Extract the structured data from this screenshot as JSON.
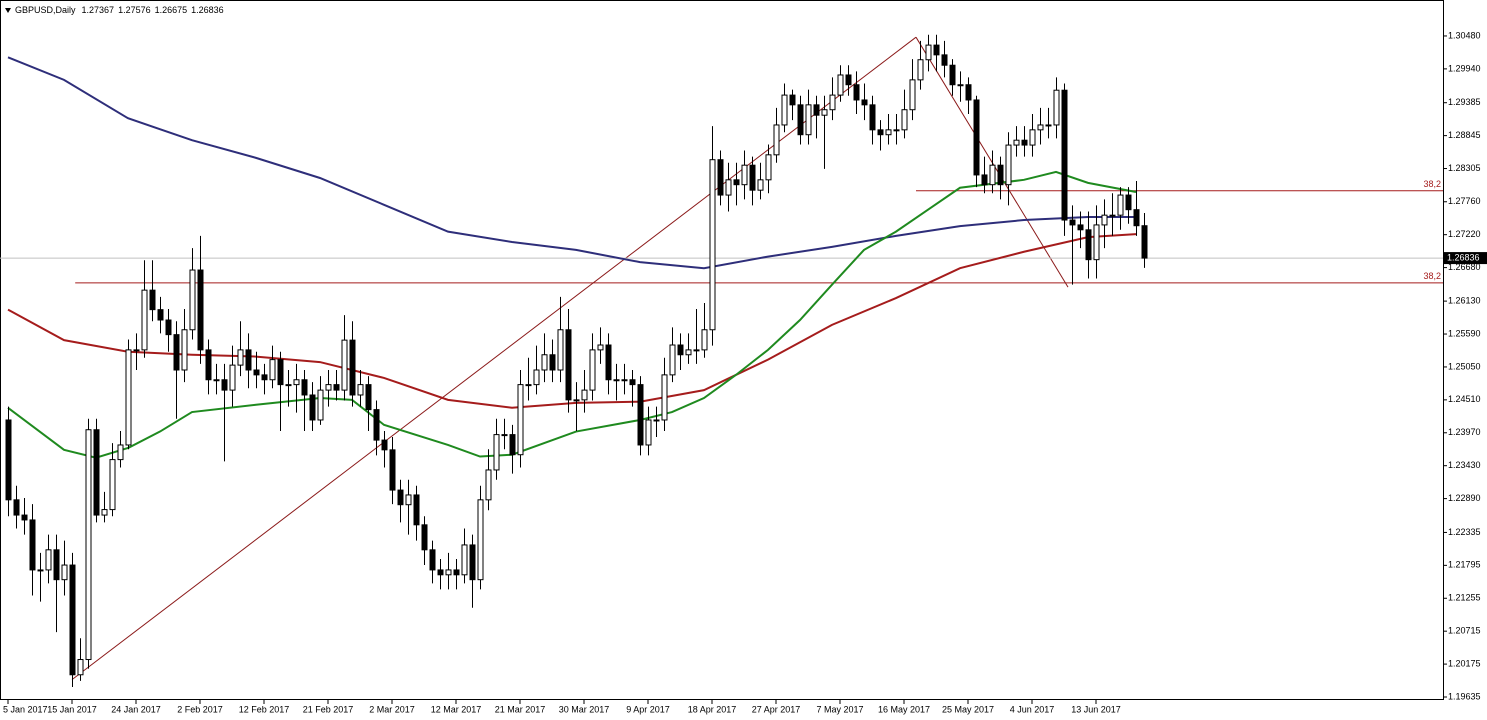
{
  "chart_data": {
    "type": "candlestick",
    "title": "GBPUSD,Daily",
    "ylim": [
      1.19586,
      1.3107
    ],
    "yticks": [
      {
        "value": 1.3048,
        "label": "1.30480"
      },
      {
        "value": 1.2994,
        "label": "1.29940"
      },
      {
        "value": 1.29385,
        "label": "1.29385"
      },
      {
        "value": 1.28845,
        "label": "1.28845"
      },
      {
        "value": 1.28305,
        "label": "1.28305"
      },
      {
        "value": 1.2776,
        "label": "1.27760"
      },
      {
        "value": 1.2722,
        "label": "1.27220"
      },
      {
        "value": 1.2668,
        "label": "1.26680"
      },
      {
        "value": 1.2613,
        "label": "1.26130"
      },
      {
        "value": 1.2559,
        "label": "1.25590"
      },
      {
        "value": 1.2505,
        "label": "1.25050"
      },
      {
        "value": 1.2451,
        "label": "1.24510"
      },
      {
        "value": 1.2397,
        "label": "1.23970"
      },
      {
        "value": 1.2343,
        "label": "1.23430"
      },
      {
        "value": 1.2289,
        "label": "1.22890"
      },
      {
        "value": 1.22335,
        "label": "1.22335"
      },
      {
        "value": 1.21795,
        "label": "1.21795"
      },
      {
        "value": 1.21255,
        "label": "1.21255"
      },
      {
        "value": 1.20715,
        "label": "1.20715"
      },
      {
        "value": 1.20175,
        "label": "1.20175"
      },
      {
        "value": 1.19635,
        "label": "1.19635"
      }
    ],
    "x_labels": [
      "5 Jan 2017",
      "15 Jan 2017",
      "24 Jan 2017",
      "2 Feb 2017",
      "12 Feb 2017",
      "21 Feb 2017",
      "2 Mar 2017",
      "12 Mar 2017",
      "21 Mar 2017",
      "30 Mar 2017",
      "9 Apr 2017",
      "18 Apr 2017",
      "27 Apr 2017",
      "7 May 2017",
      "16 May 2017",
      "25 May 2017",
      "4 Jun 2017",
      "13 Jun 2017"
    ],
    "open": [
      1.2418,
      1.2287,
      1.2262,
      1.2254,
      1.2172,
      1.2172,
      1.2205,
      1.2156,
      1.218,
      1.2,
      1.2025,
      1.2402,
      1.2262,
      1.2271,
      1.2353,
      1.2377,
      1.2533,
      1.2533,
      1.2631,
      1.2599,
      1.2582,
      1.2558,
      1.25,
      1.2566,
      1.2664,
      1.2533,
      1.2484,
      1.2484,
      1.2467,
      1.2508,
      1.2533,
      1.25,
      1.2492,
      1.2484,
      1.2517,
      1.2476,
      1.2476,
      1.2484,
      1.2459,
      1.2418,
      1.2467,
      1.2476,
      1.2467,
      1.2549,
      1.2459,
      1.2476,
      1.2435,
      1.2385,
      1.2369,
      1.2303,
      1.2279,
      1.2295,
      1.2246,
      1.2205,
      1.2172,
      1.2164,
      1.2172,
      1.2164,
      1.2213,
      1.2156,
      1.2287,
      1.2336,
      1.2394,
      1.2394,
      1.2361,
      1.2476,
      1.2476,
      1.25,
      1.2525,
      1.25,
      1.2566,
      1.2451,
      1.2451,
      1.2467,
      1.2533,
      1.2541,
      1.2484,
      1.2484,
      1.2484,
      1.2476,
      1.2377,
      1.2418,
      1.2418,
      1.2492,
      1.2541,
      1.2525,
      1.2533,
      1.2533,
      1.2566,
      1.2845,
      1.2787,
      1.2812,
      1.2804,
      1.2836,
      1.2795,
      1.2812,
      1.2853,
      1.2902,
      1.2951,
      1.2935,
      1.2886,
      1.2935,
      1.2918,
      1.2927,
      1.2951,
      1.2984,
      1.2968,
      1.2943,
      1.2935,
      1.2894,
      1.2886,
      1.2894,
      1.2894,
      1.2927,
      1.2976,
      1.3009,
      1.3033,
      1.3017,
      1.3,
      1.2968,
      1.2968,
      1.2943,
      1.282,
      1.2804,
      1.2836,
      1.2804,
      1.2869,
      1.2877,
      1.2869,
      1.2894,
      1.2902,
      1.2902,
      1.2959,
      1.2746,
      1.2738,
      1.273,
      1.2681,
      1.2738,
      1.2754,
      1.2754,
      1.2787,
      1.2763,
      1.27367
    ],
    "high": [
      1.244,
      1.231,
      1.229,
      1.228,
      1.22,
      1.223,
      1.223,
      1.222,
      1.22,
      1.206,
      1.242,
      1.242,
      1.23,
      1.238,
      1.24,
      1.255,
      1.256,
      1.268,
      1.268,
      1.262,
      1.26,
      1.258,
      1.26,
      1.27,
      1.272,
      1.255,
      1.251,
      1.251,
      1.254,
      1.258,
      1.256,
      1.253,
      1.251,
      1.254,
      1.253,
      1.25,
      1.251,
      1.25,
      1.248,
      1.249,
      1.25,
      1.25,
      1.259,
      1.258,
      1.25,
      1.249,
      1.245,
      1.24,
      1.239,
      1.232,
      1.232,
      1.231,
      1.226,
      1.222,
      1.219,
      1.22,
      1.219,
      1.224,
      1.223,
      1.231,
      1.237,
      1.242,
      1.242,
      1.241,
      1.25,
      1.252,
      1.254,
      1.256,
      1.255,
      1.262,
      1.26,
      1.248,
      1.25,
      1.256,
      1.257,
      1.256,
      1.251,
      1.251,
      1.25,
      1.249,
      1.244,
      1.244,
      1.252,
      1.257,
      1.256,
      1.256,
      1.26,
      1.261,
      1.29,
      1.286,
      1.284,
      1.284,
      1.286,
      1.285,
      1.284,
      1.287,
      1.293,
      1.297,
      1.296,
      1.295,
      1.296,
      1.295,
      1.295,
      1.298,
      1.3,
      1.3,
      1.299,
      1.297,
      1.295,
      1.291,
      1.292,
      1.292,
      1.296,
      1.301,
      1.304,
      1.305,
      1.305,
      1.304,
      1.301,
      1.299,
      1.298,
      1.295,
      1.285,
      1.286,
      1.285,
      1.289,
      1.29,
      1.29,
      1.292,
      1.293,
      1.293,
      1.298,
      1.297,
      1.277,
      1.276,
      1.276,
      1.277,
      1.278,
      1.279,
      1.28,
      1.28,
      1.281,
      1.27576
    ],
    "low": [
      1.226,
      1.224,
      1.223,
      1.213,
      1.212,
      1.215,
      1.207,
      1.213,
      1.198,
      1.199,
      1.201,
      1.225,
      1.225,
      1.226,
      1.234,
      1.237,
      1.25,
      1.252,
      1.258,
      1.256,
      1.253,
      1.242,
      1.248,
      1.255,
      1.251,
      1.246,
      1.246,
      1.235,
      1.244,
      1.249,
      1.247,
      1.247,
      1.246,
      1.247,
      1.24,
      1.244,
      1.243,
      1.24,
      1.24,
      1.241,
      1.244,
      1.245,
      1.245,
      1.244,
      1.244,
      1.24,
      1.236,
      1.234,
      1.228,
      1.225,
      1.223,
      1.222,
      1.218,
      1.215,
      1.214,
      1.214,
      1.214,
      1.215,
      1.211,
      1.214,
      1.227,
      1.232,
      1.237,
      1.233,
      1.234,
      1.245,
      1.246,
      1.248,
      1.248,
      1.248,
      1.243,
      1.24,
      1.243,
      1.245,
      1.251,
      1.246,
      1.245,
      1.246,
      1.244,
      1.236,
      1.236,
      1.239,
      1.24,
      1.248,
      1.25,
      1.251,
      1.251,
      1.252,
      1.254,
      1.277,
      1.276,
      1.277,
      1.278,
      1.277,
      1.278,
      1.279,
      1.284,
      1.289,
      1.291,
      1.287,
      1.287,
      1.288,
      1.283,
      1.291,
      1.294,
      1.295,
      1.292,
      1.291,
      1.287,
      1.286,
      1.287,
      1.287,
      1.288,
      1.291,
      1.296,
      1.299,
      1.299,
      1.298,
      1.295,
      1.294,
      1.292,
      1.28,
      1.279,
      1.279,
      1.278,
      1.277,
      1.285,
      1.285,
      1.285,
      1.287,
      1.288,
      1.288,
      1.272,
      1.264,
      1.27,
      1.265,
      1.265,
      1.27,
      1.272,
      1.273,
      1.274,
      1.272,
      1.26675
    ],
    "close": [
      1.2287,
      1.2262,
      1.2254,
      1.2172,
      1.2172,
      1.2205,
      1.2156,
      1.218,
      1.2,
      1.2025,
      1.2402,
      1.2262,
      1.2271,
      1.2353,
      1.2377,
      1.2533,
      1.2533,
      1.2631,
      1.2599,
      1.2582,
      1.2558,
      1.25,
      1.2566,
      1.2664,
      1.2533,
      1.2484,
      1.2484,
      1.2467,
      1.2508,
      1.2533,
      1.25,
      1.2492,
      1.2484,
      1.2517,
      1.2476,
      1.2476,
      1.2484,
      1.2459,
      1.2418,
      1.2467,
      1.2476,
      1.2467,
      1.2549,
      1.2459,
      1.2476,
      1.2435,
      1.2385,
      1.2369,
      1.2303,
      1.2279,
      1.2295,
      1.2246,
      1.2205,
      1.2172,
      1.2164,
      1.2172,
      1.2164,
      1.2213,
      1.2156,
      1.2287,
      1.2336,
      1.2394,
      1.2394,
      1.2361,
      1.2476,
      1.2476,
      1.25,
      1.2525,
      1.25,
      1.2566,
      1.2451,
      1.2451,
      1.2467,
      1.2533,
      1.2541,
      1.2484,
      1.2484,
      1.2484,
      1.2476,
      1.2377,
      1.2418,
      1.2418,
      1.2492,
      1.2541,
      1.2525,
      1.2533,
      1.2533,
      1.2566,
      1.2845,
      1.2787,
      1.2812,
      1.2804,
      1.2836,
      1.2795,
      1.2812,
      1.2853,
      1.2902,
      1.2951,
      1.2935,
      1.2886,
      1.2935,
      1.2918,
      1.2927,
      1.2951,
      1.2984,
      1.2968,
      1.2943,
      1.2935,
      1.2894,
      1.2886,
      1.2894,
      1.2894,
      1.2927,
      1.2976,
      1.3009,
      1.3033,
      1.3017,
      1.3,
      1.2968,
      1.2968,
      1.2943,
      1.282,
      1.2804,
      1.2836,
      1.2804,
      1.2869,
      1.2877,
      1.2869,
      1.2894,
      1.2902,
      1.2902,
      1.2959,
      1.2746,
      1.2738,
      1.273,
      1.2681,
      1.2738,
      1.2754,
      1.2754,
      1.2787,
      1.2763,
      1.27367,
      1.26836
    ],
    "moving_averages": [
      {
        "color": "#2e2e7a",
        "x": [
          0,
          7,
          15,
          23,
          31,
          39,
          47,
          55,
          63,
          71,
          79,
          87,
          95,
          103,
          111,
          119,
          127,
          135,
          141
        ],
        "values": [
          1.3013,
          1.2976,
          1.2913,
          1.2877,
          1.2848,
          1.2815,
          1.2771,
          1.2727,
          1.271,
          1.2697,
          1.2677,
          1.2667,
          1.2686,
          1.2702,
          1.272,
          1.2736,
          1.2746,
          1.2751,
          1.2751
        ]
      },
      {
        "color": "#a51c1c",
        "x": [
          0,
          7,
          15,
          23,
          31,
          39,
          47,
          55,
          63,
          71,
          79,
          87,
          95,
          103,
          111,
          119,
          127,
          135,
          141
        ],
        "values": [
          1.2599,
          1.2549,
          1.253,
          1.2525,
          1.2522,
          1.2513,
          1.2487,
          1.2451,
          1.2438,
          1.2446,
          1.2448,
          1.2467,
          1.2517,
          1.2574,
          1.2618,
          1.2667,
          1.2694,
          1.2718,
          1.2723
        ]
      },
      {
        "color": "#1f8a1f",
        "x": [
          0,
          7,
          11,
          15,
          19,
          23,
          31,
          39,
          43,
          47,
          55,
          59,
          63,
          71,
          79,
          83,
          87,
          91,
          95,
          99,
          103,
          107,
          111,
          115,
          119,
          127,
          131,
          135,
          141
        ],
        "values": [
          1.2438,
          1.2369,
          1.2356,
          1.2372,
          1.2399,
          1.2431,
          1.2443,
          1.2454,
          1.2451,
          1.241,
          1.2377,
          1.2358,
          1.2361,
          1.2399,
          1.2418,
          1.2431,
          1.2454,
          1.2492,
          1.2533,
          1.2582,
          1.264,
          1.2697,
          1.2727,
          1.2763,
          1.2799,
          1.2812,
          1.2825,
          1.2807,
          1.2792
        ]
      }
    ],
    "fib_lines": [
      {
        "color": "#8b1a1a",
        "x": [
          8,
          113.5
        ],
        "values": [
          1.1992,
          1.3046
        ]
      },
      {
        "color": "#8b1a1a",
        "x": [
          113.5,
          132.5
        ],
        "values": [
          1.3046,
          1.2636
        ]
      }
    ],
    "levels": [
      {
        "color": "#a51c1c",
        "x_start": 8.4,
        "value": 1.2643,
        "label": "38,2"
      },
      {
        "color": "#a51c1c",
        "x_start": 113.5,
        "value": 1.2794,
        "label": "38,2"
      }
    ]
  }
}
